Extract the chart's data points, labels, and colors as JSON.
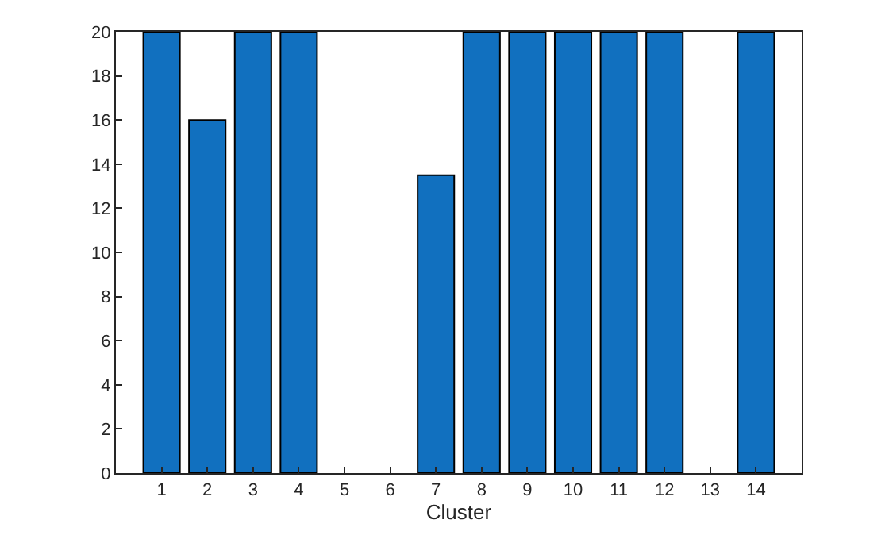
{
  "chart_data": {
    "type": "bar",
    "xlabel": "Cluster",
    "x": [
      1,
      2,
      3,
      4,
      5,
      6,
      7,
      8,
      9,
      10,
      11,
      12,
      13,
      14
    ],
    "values": [
      20,
      16,
      20,
      20,
      null,
      null,
      13.5,
      20,
      20,
      20,
      20,
      20,
      null,
      20
    ],
    "color": "#1170bf",
    "xlim": [
      0,
      15
    ],
    "xticks": [
      1,
      2,
      3,
      4,
      5,
      6,
      7,
      8,
      9,
      10,
      11,
      12,
      13,
      14
    ],
    "ylim": [
      0,
      20
    ],
    "yticks": [
      0,
      2,
      4,
      6,
      8,
      10,
      12,
      14,
      16,
      18,
      20
    ]
  }
}
